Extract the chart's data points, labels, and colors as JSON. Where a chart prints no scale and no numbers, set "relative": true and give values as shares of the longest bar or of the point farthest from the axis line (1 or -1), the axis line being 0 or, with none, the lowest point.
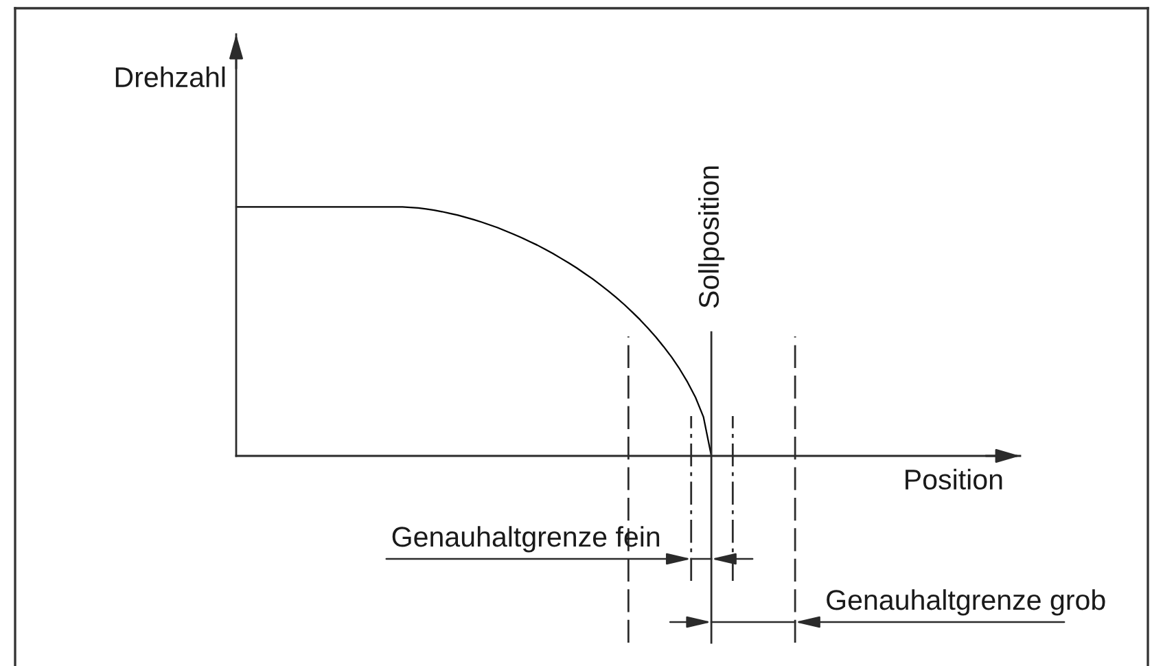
{
  "chart_data": {
    "type": "line",
    "relative": true,
    "xlabel": "Position",
    "ylabel": "Drehzahl",
    "categories": [
      null,
      null,
      null,
      null,
      null,
      null,
      null,
      null,
      null,
      null,
      null,
      null,
      null,
      null,
      null,
      null,
      null,
      null,
      null,
      null,
      null,
      null,
      null,
      null,
      null,
      null,
      null,
      null,
      null,
      null,
      null,
      null,
      null,
      null,
      null,
      null,
      null,
      null,
      null,
      null,
      null,
      null,
      null,
      null,
      null,
      null,
      null,
      null,
      null,
      null,
      null,
      null,
      null,
      null,
      null,
      null,
      null,
      null,
      null,
      null,
      null,
      null,
      null,
      null,
      null,
      null,
      null,
      null,
      null,
      null,
      null,
      null,
      null,
      null,
      null,
      null,
      null,
      null,
      null,
      null,
      null,
      null,
      null,
      null,
      null,
      null,
      null,
      null,
      null,
      null,
      null,
      null,
      null,
      null,
      null,
      null,
      null,
      null,
      null,
      null
    ],
    "series": [
      {
        "color": "#000000",
        "values": [
          1,
          1,
          1,
          1,
          1,
          1,
          1,
          1,
          1,
          1,
          1,
          1,
          1,
          1,
          1,
          1,
          1,
          1,
          1,
          1,
          1,
          1,
          0.998,
          0.996,
          0.992,
          0.987,
          0.981,
          0.974,
          0.967,
          0.958,
          0.949,
          0.939,
          0.928,
          0.917,
          0.904,
          0.891,
          0.877,
          0.862,
          0.847,
          0.83,
          0.813,
          0.794,
          0.775,
          0.755,
          0.733,
          0.711,
          0.687,
          0.662,
          0.636,
          0.608,
          0.578,
          0.547,
          0.513,
          0.477,
          0.438,
          0.396,
          0.349,
          0.296,
          0.235,
          0.157,
          0,
          null,
          null,
          null,
          null,
          null,
          null,
          null,
          null,
          null,
          null,
          null,
          null,
          null,
          null,
          null,
          null,
          null,
          null,
          null,
          null,
          null,
          null,
          null,
          null,
          null,
          null,
          null,
          null,
          null,
          null,
          null,
          null,
          null,
          null,
          null,
          null,
          null,
          null,
          null
        ]
      }
    ],
    "annotations": [
      "Sollposition",
      "Genauhaltgrenze fein",
      "Genauhaltgrenze grob"
    ]
  }
}
